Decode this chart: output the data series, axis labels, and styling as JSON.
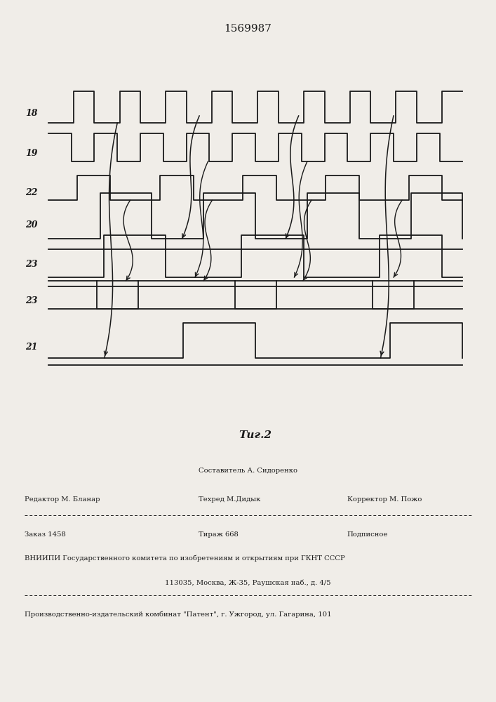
{
  "title": "1569987",
  "fig_label": "Τиг.2",
  "bg": "#f0ede8",
  "lc": "#1a1a1a",
  "signal_labels": [
    "18",
    "19",
    "22",
    "20",
    "23",
    "23",
    "21"
  ],
  "footer_sestavitel": "Составитель А. Сидоренко",
  "footer_redaktor": "Редактор М. Бланар",
  "footer_tehred": "Техред М.Дидык",
  "footer_korrektor": "Корректор М. Пожо",
  "footer_zakaz": "Заказ 1458",
  "footer_tirazh": "Тираж 668",
  "footer_podpisnoe": "Подписное",
  "footer_vnipi": "ВНИИПИ Государственного комитета по изобретениям и открытиям при ГКНТ СССР",
  "footer_addr": "113035, Москва, Ж-35, Раушская наб., д. 4/5",
  "footer_patent": "Производственно-издательский комбинат \"Патент\", г. Ужгород, ул. Гагарина, 101"
}
